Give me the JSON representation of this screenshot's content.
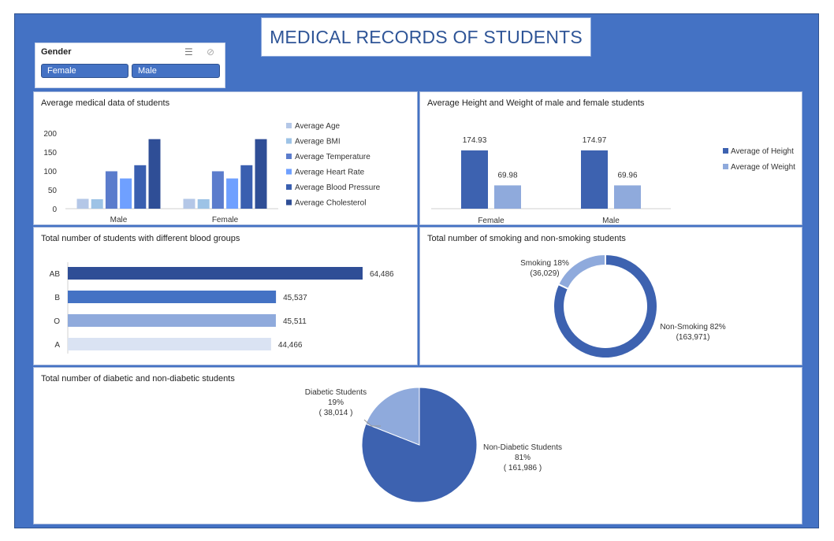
{
  "dashboard": {
    "title": "MEDICAL RECORDS OF STUDENTS"
  },
  "slicer": {
    "header": "Gender",
    "options": [
      "Female",
      "Male"
    ],
    "multi_select_icon": "multi-select-icon",
    "clear_filter_icon": "clear-filter-icon"
  },
  "colors": {
    "frame": "#4472c4",
    "dark": "#2f5597",
    "mid": "#4472c4",
    "light": "#8faadc",
    "lighter": "#b4c7e7",
    "pale": "#dae3f3"
  },
  "chart_data": [
    {
      "type": "bar",
      "title": "Average medical data of students",
      "categories": [
        "Male",
        "Female"
      ],
      "yticks": [
        0,
        50,
        100,
        150,
        200
      ],
      "ylim": [
        0,
        200
      ],
      "legend_position": "right",
      "series": [
        {
          "name": "Average Age",
          "values": [
            26,
            26
          ],
          "color": "#b4c7e7"
        },
        {
          "name": "Average BMI",
          "values": [
            25,
            25
          ],
          "color": "#9dc3e6"
        },
        {
          "name": "Average Temperature",
          "values": [
            99,
            99
          ],
          "color": "#5b7ccc"
        },
        {
          "name": "Average Heart Rate",
          "values": [
            80,
            80
          ],
          "color": "#6fa0ff"
        },
        {
          "name": "Average Blood Pressure",
          "values": [
            115,
            115
          ],
          "color": "#3a5fb0"
        },
        {
          "name": "Average Cholesterol",
          "values": [
            184,
            184
          ],
          "color": "#2f4e96"
        }
      ]
    },
    {
      "type": "bar",
      "title": "Average Height and Weight of male and female students",
      "categories": [
        "Female",
        "Male"
      ],
      "legend_position": "right",
      "series": [
        {
          "name": "Average of Height",
          "values": [
            174.93,
            174.97
          ],
          "labels": [
            "174.93",
            "174.97"
          ],
          "color": "#3d62b0"
        },
        {
          "name": "Average of Weight",
          "values": [
            69.98,
            69.96
          ],
          "labels": [
            "69.98",
            "69.96"
          ],
          "color": "#8faadc"
        }
      ]
    },
    {
      "type": "bar",
      "orientation": "horizontal",
      "title": "Total number of students with different blood groups",
      "categories": [
        "AB",
        "B",
        "O",
        "A"
      ],
      "values": [
        64486,
        45537,
        45511,
        44466
      ],
      "labels": [
        "64,486",
        "45,537",
        "45,511",
        "44,466"
      ],
      "colors": [
        "#2f4e96",
        "#4472c4",
        "#8faadc",
        "#dae3f3"
      ]
    },
    {
      "type": "pie",
      "variant": "donut",
      "title": "Total number of smoking and non-smoking students",
      "slices": [
        {
          "name": "Non-Smoking",
          "value": 163971,
          "percent": "82%",
          "label_line1": "Non-Smoking 82%",
          "label_line2": "(163,971)",
          "color": "#3d62b0"
        },
        {
          "name": "Smoking",
          "value": 36029,
          "percent": "18%",
          "label_line1": "Smoking 18%",
          "label_line2": "(36,029)",
          "color": "#8faadc"
        }
      ]
    },
    {
      "type": "pie",
      "title": "Total number of diabetic and non-diabetic students",
      "slices": [
        {
          "name": "Non-Diabetic Students",
          "value": 161986,
          "percent": "81%",
          "count_label": "( 161,986 )",
          "color": "#3d62b0"
        },
        {
          "name": "Diabetic Students",
          "value": 38014,
          "percent": "19%",
          "count_label": "( 38,014 )",
          "color": "#8faadc"
        }
      ]
    }
  ]
}
